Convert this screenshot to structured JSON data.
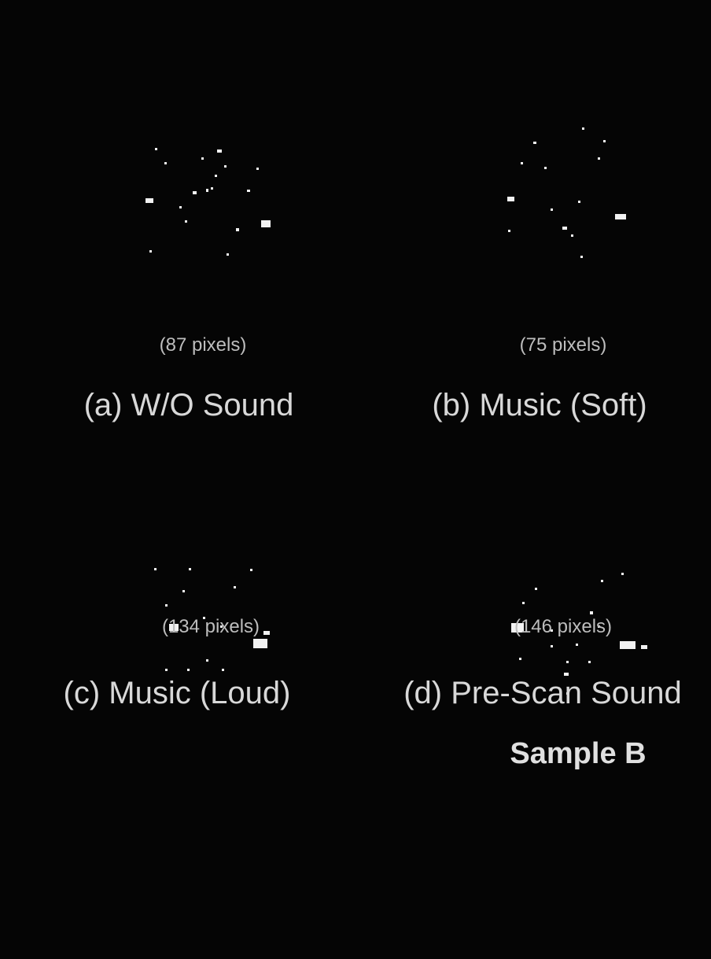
{
  "panels": [
    {
      "count": "(87 pixels)",
      "label": "(a) W/O Sound"
    },
    {
      "count": "(75 pixels)",
      "label": "(b) Music (Soft)"
    },
    {
      "count": "(134 pixels)",
      "label": "(c) Music (Loud)"
    },
    {
      "count": "(146 pixels)",
      "label": "(d) Pre-Scan Sound"
    }
  ],
  "footer": "Sample B"
}
